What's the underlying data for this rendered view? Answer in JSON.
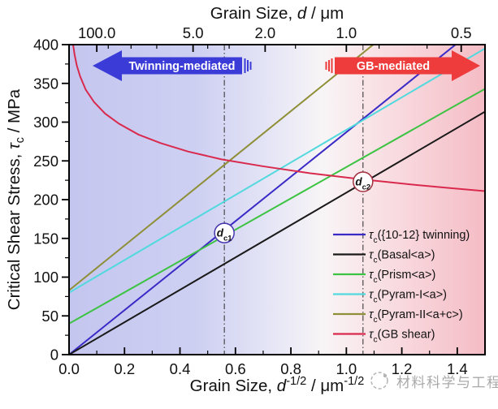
{
  "watermark": {
    "text": "材料科学与工程"
  },
  "annotations": {
    "left_arrow": {
      "label": "Twinning-mediated",
      "color": "#3b3bd8"
    },
    "right_arrow": {
      "label": "GB-mediated",
      "color": "#ee3b3b"
    }
  },
  "chart_data": {
    "type": "line",
    "title": "",
    "x_bottom": {
      "title_parts": [
        {
          "t": "Grain Size, "
        },
        {
          "t": "d",
          "i": true
        },
        {
          "t": "-1/2",
          "sup": true
        },
        {
          "t": " / μm"
        },
        {
          "t": "-1/2",
          "sup": true
        }
      ],
      "range": [
        0,
        1.5
      ],
      "major_ticks": [
        0.0,
        0.2,
        0.4,
        0.6,
        0.8,
        1.0,
        1.2,
        1.4
      ],
      "minor_step": 0.1
    },
    "x_top": {
      "title_parts": [
        {
          "t": "Grain Size, "
        },
        {
          "t": "d",
          "i": true
        },
        {
          "t": " / μm"
        }
      ],
      "ticks": [
        {
          "label": "100.0",
          "u": 0.1
        },
        {
          "label": "5.0",
          "u": 0.4472
        },
        {
          "label": "2.0",
          "u": 0.7071
        },
        {
          "label": "1.0",
          "u": 1.0
        },
        {
          "label": "0.5",
          "u": 1.4142
        }
      ],
      "minor_u": [
        0.1414,
        0.2236,
        0.3162,
        0.5,
        0.5774,
        0.8165,
        1.118,
        1.291
      ]
    },
    "y_left": {
      "title_parts": [
        {
          "t": "Critical Shear Stress, "
        },
        {
          "t": "τ",
          "i": true
        },
        {
          "t": "c",
          "sub": true
        },
        {
          "t": " / MPa"
        }
      ],
      "range": [
        0,
        400
      ],
      "major_step": 50,
      "minor_step": 25
    },
    "legend_prefix_parts": [
      {
        "t": "τ",
        "i": true
      },
      {
        "t": "c",
        "sub": true
      }
    ],
    "series": [
      {
        "name": "twinning",
        "legend": "({10-12} twinning)",
        "color": "#3a2ac6",
        "model": "linear",
        "intercept": 0,
        "slope": 287
      },
      {
        "name": "basal",
        "legend": "(Basal<a>)",
        "color": "#1a1a1a",
        "model": "linear",
        "intercept": 0,
        "slope": 209
      },
      {
        "name": "prism",
        "legend": "(Prism<a>)",
        "color": "#3cc342",
        "model": "linear",
        "intercept": 40,
        "slope": 202
      },
      {
        "name": "pyram-1",
        "legend": "(Pyram-I<a>)",
        "color": "#52d9de",
        "model": "linear",
        "intercept": 80,
        "slope": 210
      },
      {
        "name": "pyram-2",
        "legend": "(Pyram-II<a+c>)",
        "color": "#8f8f38",
        "model": "linear",
        "intercept": 83,
        "slope": 289
      },
      {
        "name": "gb-shear",
        "legend": "(GB shear)",
        "color": "#d92a4e",
        "model": "points",
        "points": [
          [
            0.0146,
            400
          ],
          [
            0.02,
            387
          ],
          [
            0.028,
            373
          ],
          [
            0.04,
            359
          ],
          [
            0.06,
            342
          ],
          [
            0.09,
            326
          ],
          [
            0.13,
            311
          ],
          [
            0.18,
            298
          ],
          [
            0.25,
            284
          ],
          [
            0.33,
            273
          ],
          [
            0.43,
            262
          ],
          [
            0.55,
            252
          ],
          [
            0.7,
            243
          ],
          [
            0.87,
            234
          ],
          [
            1.06,
            226
          ],
          [
            1.25,
            219
          ],
          [
            1.37,
            215
          ],
          [
            1.5,
            211
          ]
        ]
      }
    ],
    "critical_points": [
      {
        "id": "dc1",
        "main": "d",
        "sub": "c1",
        "u": 0.56,
        "tau": 157,
        "ring": "#4634ae"
      },
      {
        "id": "dc2",
        "main": "d",
        "sub": "c2",
        "u": 1.06,
        "tau": 223,
        "ring": "#a3303f"
      }
    ],
    "background": {
      "stops": [
        [
          "0%",
          "#c4c6ef"
        ],
        [
          "30%",
          "#cdcff2"
        ],
        [
          "50%",
          "#e7e7f6"
        ],
        [
          "61%",
          "#f8f5f6"
        ],
        [
          "72%",
          "#f9e4e8"
        ],
        [
          "100%",
          "#f5bcc5"
        ]
      ]
    }
  }
}
